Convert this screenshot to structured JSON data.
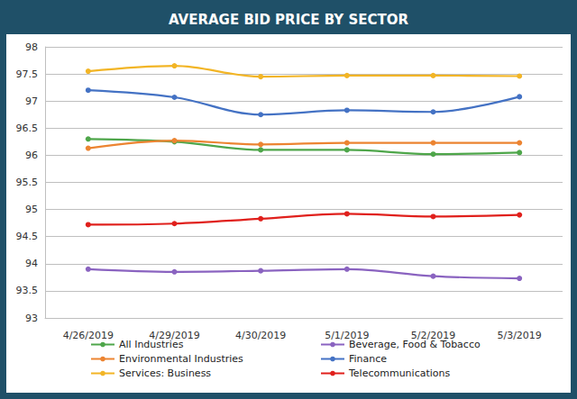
{
  "chart_data": {
    "type": "line",
    "title": "AVERAGE BID PRICE BY SECTOR",
    "categories": [
      "4/26/2019",
      "4/29/2019",
      "4/30/2019",
      "5/1/2019",
      "5/2/2019",
      "5/3/2019"
    ],
    "series": [
      {
        "name": "All Industries",
        "color": "#4ea64a",
        "values": [
          96.3,
          96.25,
          96.1,
          96.1,
          96.02,
          96.05
        ]
      },
      {
        "name": "Beverage, Food & Tobacco",
        "color": "#8a63c0",
        "values": [
          93.9,
          93.85,
          93.87,
          93.9,
          93.77,
          93.73
        ]
      },
      {
        "name": "Environmental Industries",
        "color": "#ec8431",
        "values": [
          96.13,
          96.27,
          96.2,
          96.23,
          96.23,
          96.23
        ]
      },
      {
        "name": "Finance",
        "color": "#4472c4",
        "values": [
          97.2,
          97.07,
          96.75,
          96.83,
          96.8,
          97.08
        ]
      },
      {
        "name": "Services: Business",
        "color": "#f2b526",
        "values": [
          97.55,
          97.65,
          97.45,
          97.47,
          97.47,
          97.46
        ]
      },
      {
        "name": "Telecommunications",
        "color": "#e0201c",
        "values": [
          94.72,
          94.74,
          94.83,
          94.92,
          94.87,
          94.9
        ]
      }
    ],
    "ylim": [
      93,
      98
    ],
    "yticks": [
      93,
      93.5,
      94,
      94.5,
      95,
      95.5,
      96,
      96.5,
      97,
      97.5,
      98
    ],
    "grid": true,
    "legend": "bottom",
    "marker": "circle",
    "line_style": "smooth"
  }
}
